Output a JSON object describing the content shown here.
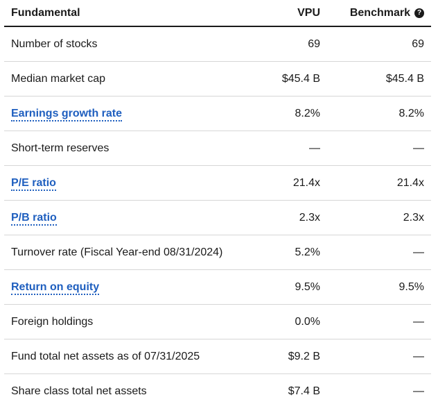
{
  "header": {
    "fundamental": "Fundamental",
    "vpu": "VPU",
    "benchmark": "Benchmark",
    "help_glyph": "?"
  },
  "rows": [
    {
      "name": "Number of stocks",
      "vpu": "69",
      "benchmark": "69",
      "link": false
    },
    {
      "name": "Median market cap",
      "vpu": "$45.4 B",
      "benchmark": "$45.4 B",
      "link": false
    },
    {
      "name": "Earnings growth rate",
      "vpu": "8.2%",
      "benchmark": "8.2%",
      "link": true
    },
    {
      "name": "Short-term reserves",
      "vpu": "—",
      "benchmark": "—",
      "link": false
    },
    {
      "name": "P/E ratio",
      "vpu": "21.4x",
      "benchmark": "21.4x",
      "link": true
    },
    {
      "name": "P/B ratio",
      "vpu": "2.3x",
      "benchmark": "2.3x",
      "link": true
    },
    {
      "name": "Turnover rate (Fiscal Year-end 08/31/2024)",
      "vpu": "5.2%",
      "benchmark": "—",
      "link": false
    },
    {
      "name": "Return on equity",
      "vpu": "9.5%",
      "benchmark": "9.5%",
      "link": true
    },
    {
      "name": "Foreign holdings",
      "vpu": "0.0%",
      "benchmark": "—",
      "link": false
    },
    {
      "name": "Fund total net assets as of 07/31/2025",
      "vpu": "$9.2 B",
      "benchmark": "—",
      "link": false
    },
    {
      "name": "Share class total net assets",
      "vpu": "$7.4 B",
      "benchmark": "—",
      "link": false
    }
  ],
  "colors": {
    "link": "#1f5fbf",
    "text": "#1a1a1a",
    "divider": "#d6d6d6"
  }
}
